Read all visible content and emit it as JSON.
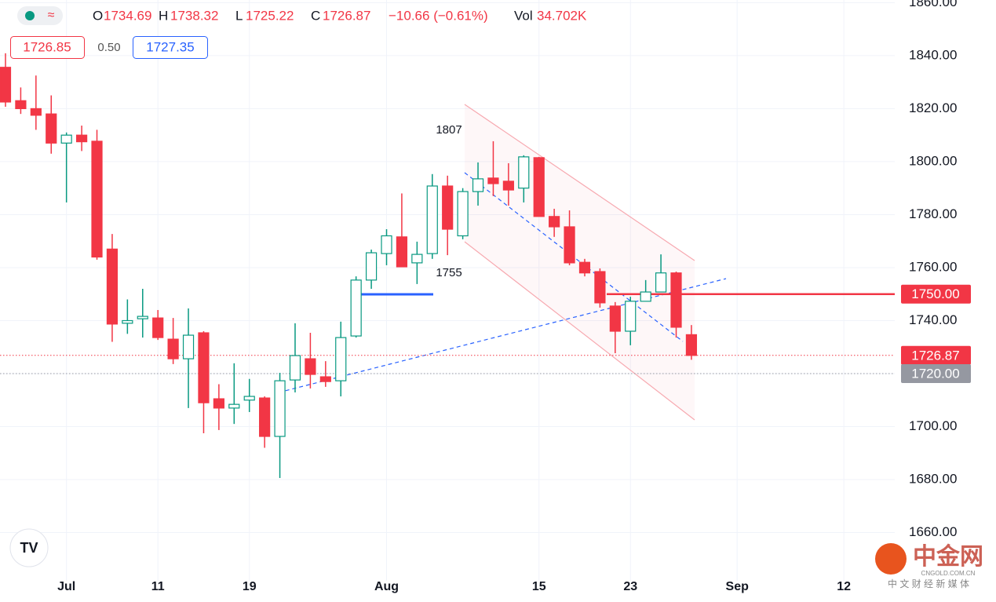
{
  "chart_data": {
    "type": "candlestick",
    "open": [
      1835.6,
      1823,
      1820,
      1818,
      1807,
      1810,
      1807.7,
      1767,
      1739,
      1740.7,
      1741,
      1733,
      1725.6,
      1735.4,
      1710.5,
      1707,
      1710,
      1710.8,
      1696.3,
      1717.6,
      1725.6,
      1718.8,
      1717.3,
      1734.2,
      1755.3,
      1765.3,
      1771.6,
      1761.8,
      1765.3,
      1790.8,
      1772,
      1788.7,
      1793.8,
      1792.6,
      1790,
      1801.5,
      1779.3,
      1775.4,
      1762,
      1758.5,
      1745.5,
      1736,
      1747.3,
      1750.8,
      1758,
      1734.69
    ],
    "high": [
      1840.9,
      1828,
      1832.5,
      1825,
      1811,
      1813.6,
      1812,
      1772.7,
      1748,
      1752,
      1744,
      1741,
      1744.6,
      1736,
      1716,
      1723.9,
      1718,
      1711.4,
      1720.3,
      1739,
      1735.4,
      1724.7,
      1739.6,
      1756.7,
      1766.8,
      1774.5,
      1788,
      1769.8,
      1795.3,
      1794.7,
      1790,
      1799.7,
      1807.7,
      1799.4,
      1802.4,
      1801.8,
      1782.2,
      1781.6,
      1763.3,
      1759.7,
      1747,
      1749,
      1755.3,
      1765,
      1758.5,
      1738.32
    ],
    "low": [
      1820.7,
      1818,
      1812,
      1803,
      1784.6,
      1804,
      1763,
      1732,
      1735,
      1733.6,
      1732.7,
      1723.6,
      1707,
      1697.5,
      1698.7,
      1701,
      1705.5,
      1692,
      1680.6,
      1712.9,
      1714.4,
      1715,
      1711.4,
      1733.6,
      1752,
      1760.9,
      1760.3,
      1753.8,
      1763.3,
      1764.7,
      1770.7,
      1783.4,
      1787,
      1783.4,
      1784.6,
      1779.3,
      1771.6,
      1760.9,
      1756.7,
      1744.9,
      1727.7,
      1730.7,
      1747.3,
      1750.8,
      1733.6,
      1725.22
    ],
    "close": [
      1822.5,
      1820,
      1817.5,
      1807,
      1810,
      1807.5,
      1764,
      1738.7,
      1740,
      1741.6,
      1733.6,
      1725.6,
      1734.5,
      1709,
      1707,
      1708.4,
      1711.4,
      1696.3,
      1717.3,
      1726.8,
      1719.7,
      1717,
      1733.6,
      1755.3,
      1765.6,
      1772,
      1760.3,
      1765,
      1790.8,
      1774.5,
      1788.7,
      1793.5,
      1791.7,
      1789.3,
      1801.8,
      1779.3,
      1775.4,
      1761.8,
      1758,
      1746.7,
      1736,
      1747.3,
      1750.8,
      1758,
      1737.5,
      1726.87
    ],
    "up_color": "#089981",
    "down_color": "#f23645",
    "xlim": [
      -0.36,
      58.34
    ],
    "xticks": [
      {
        "value": 4,
        "label": "Jul"
      },
      {
        "value": 10,
        "label": "11"
      },
      {
        "value": 16,
        "label": "19"
      },
      {
        "value": 25,
        "label": "Aug"
      },
      {
        "value": 35,
        "label": "15"
      },
      {
        "value": 41,
        "label": "23"
      },
      {
        "value": 48,
        "label": "Sep"
      },
      {
        "value": 55,
        "label": "12"
      }
    ],
    "ylim": [
      1641.8,
      1861
    ],
    "yticks": [
      {
        "value": 1660,
        "label": "1660.00"
      },
      {
        "value": 1680,
        "label": "1680.00"
      },
      {
        "value": 1700,
        "label": "1700.00"
      },
      {
        "value": 1720,
        "label": "1720.00"
      },
      {
        "value": 1740,
        "label": "1740.00"
      },
      {
        "value": 1760,
        "label": "1760.00"
      },
      {
        "value": 1780,
        "label": "1780.00"
      },
      {
        "value": 1800,
        "label": "1800.00"
      },
      {
        "value": 1820,
        "label": "1820.00"
      },
      {
        "value": 1840,
        "label": "1840.00"
      },
      {
        "value": 1860,
        "label": "1860.00"
      }
    ],
    "grid": true,
    "price_labels": [
      {
        "value": 1750,
        "label": "1750.00",
        "color": "#f23645"
      },
      {
        "value": 1726.87,
        "label": "1726.87",
        "color": "#f23645"
      },
      {
        "value": 1720,
        "label": "1720.00",
        "color": "#9598a1"
      }
    ],
    "annotations": [
      "1807",
      "1755"
    ],
    "legend": {
      "o": "O",
      "h": "H",
      "l": "L",
      "c": "C",
      "change": "−10.66 (−0.61%)",
      "vol_label": "Vol",
      "vol": "34.702K"
    },
    "quote": {
      "bid": "1726.85",
      "spread": "0.50",
      "ask": "1727.35"
    },
    "watermark": {
      "name": "中金网",
      "site": "CNGOLD.COM.CN",
      "tagline": "中 文 财 经 新 媒 体"
    }
  }
}
